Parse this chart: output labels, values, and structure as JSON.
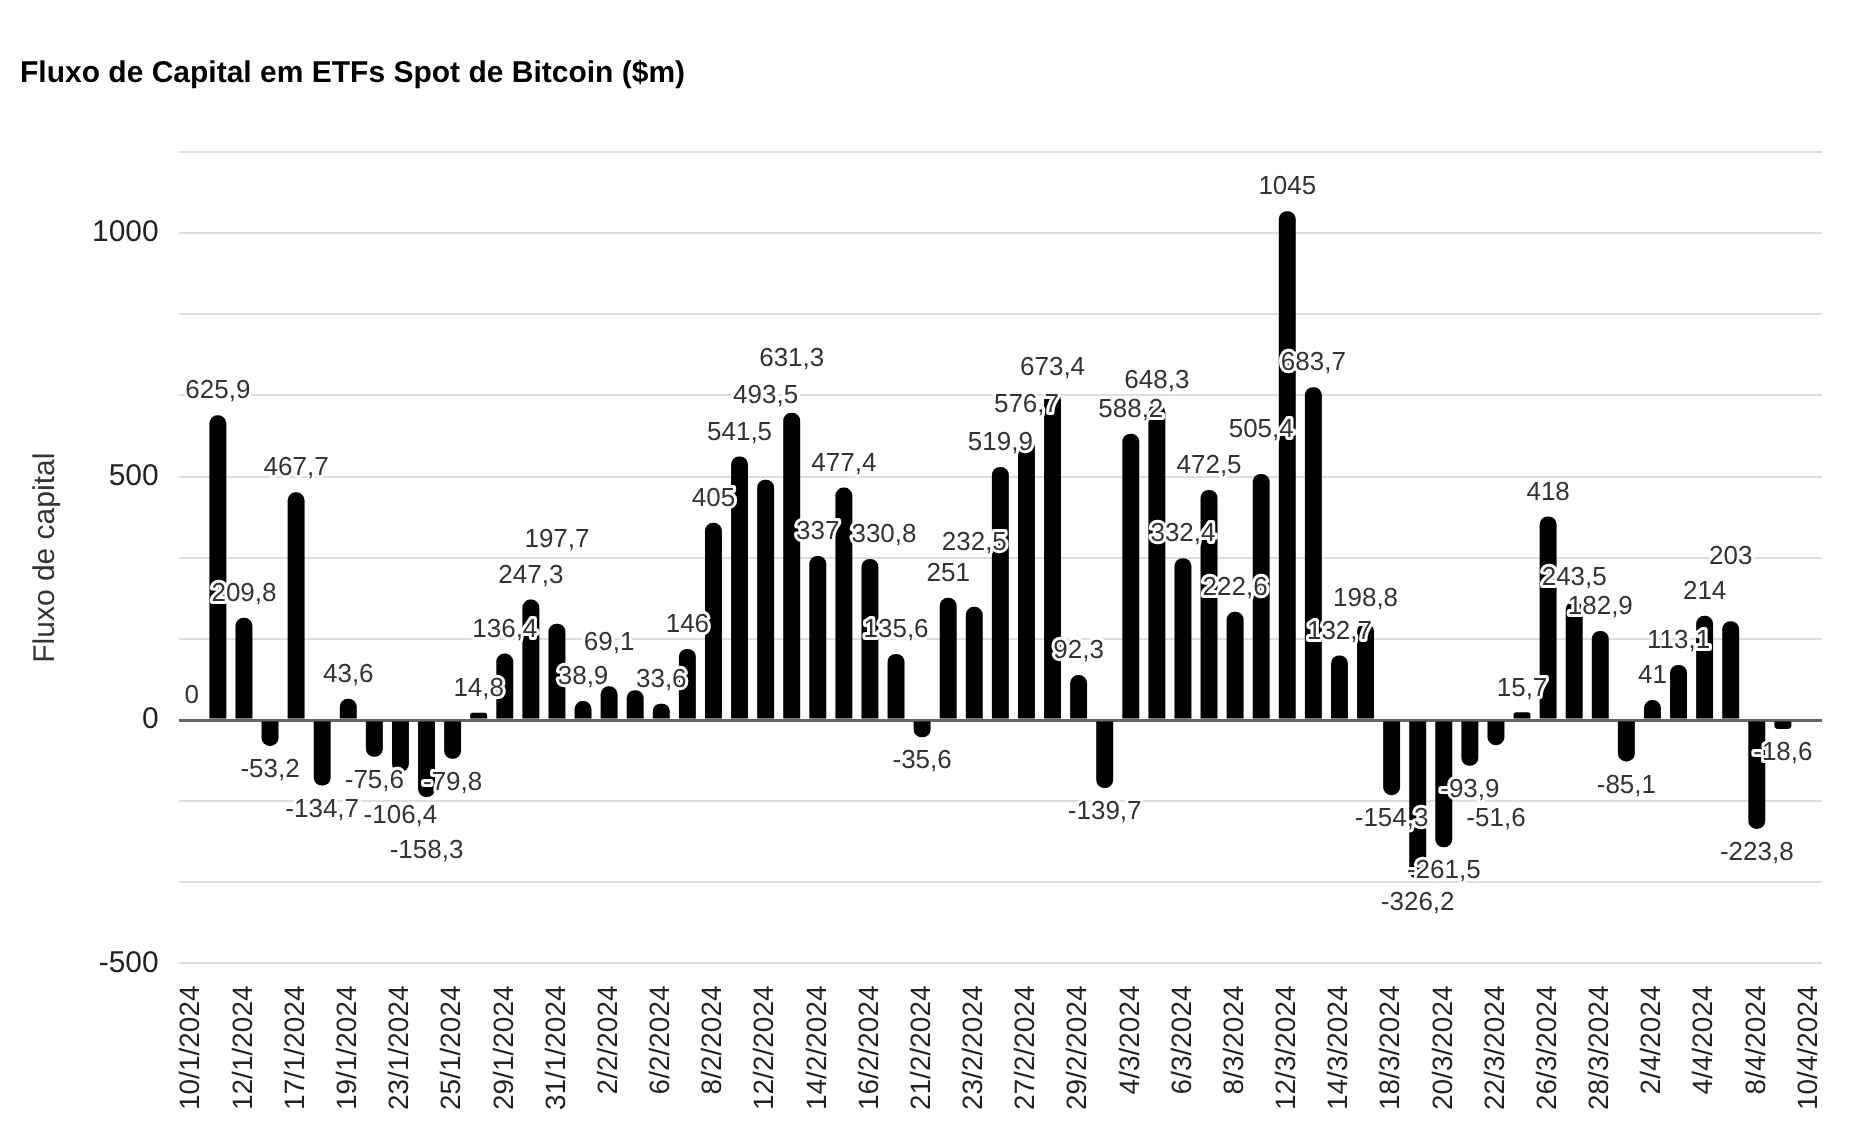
{
  "chart_data": {
    "type": "bar",
    "title": "Fluxo de Capital em ETFs Spot de Bitcoin ($m)",
    "ylabel": "Fluxo de capital",
    "categories": [
      "10/1/2024",
      null,
      "12/1/2024",
      null,
      "17/1/2024",
      null,
      "19/1/2024",
      null,
      "23/1/2024",
      null,
      "25/1/2024",
      null,
      "29/1/2024",
      null,
      "31/1/2024",
      null,
      "2/2/2024",
      null,
      "6/2/2024",
      null,
      "8/2/2024",
      null,
      "12/2/2024",
      null,
      "14/2/2024",
      null,
      "16/2/2024",
      null,
      "21/2/2024",
      null,
      "23/2/2024",
      null,
      "27/2/2024",
      null,
      "29/2/2024",
      null,
      "4/3/2024",
      null,
      "6/3/2024",
      null,
      "8/3/2024",
      null,
      "12/3/2024",
      null,
      "14/3/2024",
      null,
      "18/3/2024",
      null,
      "20/3/2024",
      null,
      "22/3/2024",
      null,
      "26/3/2024",
      null,
      "28/3/2024",
      null,
      "2/4/2024",
      null,
      "4/4/2024",
      null,
      "8/4/2024",
      null,
      "10/4/2024"
    ],
    "values": [
      0,
      625.9,
      209.8,
      -53.2,
      467.7,
      -134.7,
      43.6,
      -75.6,
      -106.4,
      -158.3,
      -79.8,
      14.8,
      136.4,
      247.3,
      197.7,
      38.9,
      69.1,
      61.1,
      33.6,
      146,
      405,
      541.5,
      493.5,
      631.3,
      337,
      477.4,
      330.8,
      135.6,
      -35.6,
      251,
      232.5,
      519.9,
      576.7,
      673.4,
      92.3,
      -139.7,
      588.2,
      648.3,
      332.4,
      472.5,
      222.6,
      505.4,
      1045,
      683.7,
      132.7,
      198.8,
      -154.3,
      -326.2,
      -261.5,
      -93.9,
      -51.6,
      15.7,
      418,
      243.5,
      182.9,
      -85.1,
      41,
      113.1,
      214,
      203,
      -223.8,
      -18.6,
      null
    ],
    "value_labels": [
      "0",
      "625,9",
      "209,8",
      "-53,2",
      "467,7",
      "-134,7",
      "43,6",
      "-75,6",
      "-106,4",
      "-158,3",
      "-79,8",
      "14,8",
      "136,4",
      "247,3",
      "197,7",
      "38,9",
      "69,1",
      null,
      "33,6",
      "146",
      "405",
      "541,5",
      "493,5",
      "631,3",
      "337",
      "477,4",
      "330,8",
      "135,6",
      "-35,6",
      "251",
      "232,5",
      "519,9",
      "576,7",
      "673,4",
      "92,3",
      "-139,7",
      "588,2",
      "648,3",
      "332,4",
      "472,5",
      "222,6",
      "505,4",
      "1045",
      "683,7",
      "132,7",
      "198,8",
      "-154,3",
      "-326,2",
      "-261,5",
      "-93,9",
      "-51,6",
      "15,7",
      "418",
      "243,5",
      "182,9",
      "-85,1",
      "41",
      "113,1",
      "214",
      "203",
      "-223,8",
      "-18,6",
      null
    ],
    "color": "#000000",
    "data_labels": true,
    "grid": "y",
    "legend": false,
    "ylim": [
      -500,
      1166.7
    ],
    "yticks": [
      -500,
      {
        "value": -333.3,
        "label": null
      },
      {
        "value": -166.7,
        "label": null
      },
      0,
      {
        "value": 166.7,
        "label": null
      },
      {
        "value": 333.3,
        "label": null
      },
      500,
      {
        "value": 666.7,
        "label": null
      },
      {
        "value": 833.3,
        "label": null
      },
      1000,
      {
        "value": 1166.7,
        "label": null
      }
    ]
  }
}
